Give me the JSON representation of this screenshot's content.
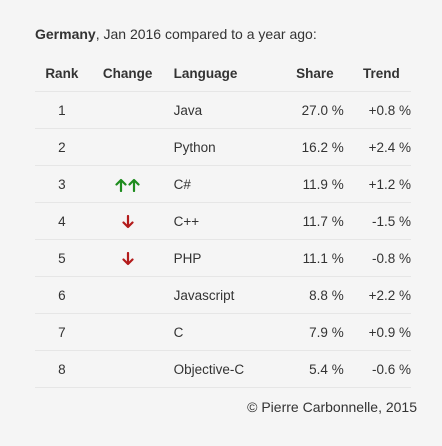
{
  "caption": {
    "country": "Germany",
    "rest": ", Jan 2016 compared to a year ago:"
  },
  "table": {
    "headers": {
      "rank": "Rank",
      "change": "Change",
      "language": "Language",
      "share": "Share",
      "trend": "Trend"
    },
    "rows": [
      {
        "rank": "1",
        "change": "none",
        "language": "Java",
        "share": "27.0 %",
        "trend": "+0.8 %"
      },
      {
        "rank": "2",
        "change": "none",
        "language": "Python",
        "share": "16.2 %",
        "trend": "+2.4 %"
      },
      {
        "rank": "3",
        "change": "double-up",
        "language": "C#",
        "share": "11.9 %",
        "trend": "+1.2 %"
      },
      {
        "rank": "4",
        "change": "down",
        "language": "C++",
        "share": "11.7 %",
        "trend": "-1.5 %"
      },
      {
        "rank": "5",
        "change": "down",
        "language": "PHP",
        "share": "11.1 %",
        "trend": "-0.8 %"
      },
      {
        "rank": "6",
        "change": "none",
        "language": "Javascript",
        "share": "8.8 %",
        "trend": "+2.2 %"
      },
      {
        "rank": "7",
        "change": "none",
        "language": "C",
        "share": "7.9 %",
        "trend": "+0.9 %"
      },
      {
        "rank": "8",
        "change": "none",
        "language": "Objective-C",
        "share": "5.4 %",
        "trend": "-0.6 %"
      }
    ]
  },
  "icons": {
    "up": "arrow-up-icon",
    "down": "arrow-down-icon"
  },
  "colors": {
    "up": "#1e8c1e",
    "down": "#b31b1b",
    "border": "#e6e6e6",
    "background": "#f5f5f5",
    "text": "#333333"
  },
  "footer": "© Pierre Carbonnelle, 2015"
}
